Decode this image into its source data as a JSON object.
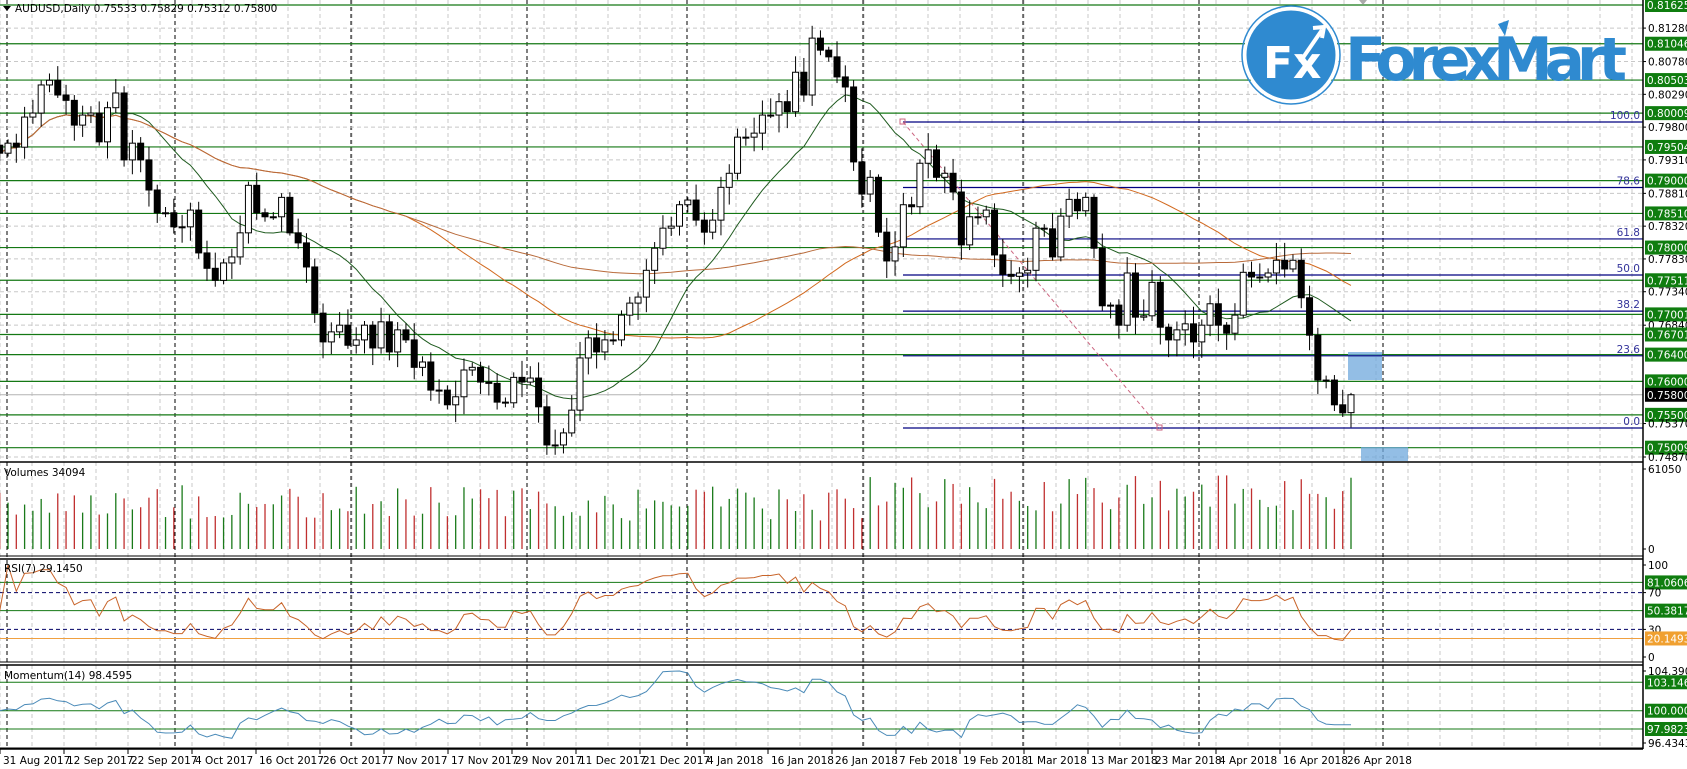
{
  "chart_data": {
    "type": "candlestick",
    "symbol_header": "AUDUSD,Daily  0.75533 0.75829 0.75312 0.75800",
    "last_bar": {
      "open": 0.75533,
      "high": 0.75829,
      "low": 0.75312,
      "close": 0.758
    },
    "closes": [
      0.7941,
      0.7956,
      0.795,
      0.7995,
      0.8001,
      0.8043,
      0.805,
      0.8028,
      0.802,
      0.7983,
      0.7998,
      0.8001,
      0.7958,
      0.8009,
      0.8031,
      0.7931,
      0.7956,
      0.7931,
      0.7886,
      0.7852,
      0.7852,
      0.7831,
      0.7831,
      0.7856,
      0.7792,
      0.7769,
      0.7751,
      0.7777,
      0.7786,
      0.7822,
      0.7893,
      0.7852,
      0.7846,
      0.7846,
      0.7875,
      0.7822,
      0.7807,
      0.7771,
      0.7702,
      0.7659,
      0.7674,
      0.7684,
      0.7654,
      0.7662,
      0.7684,
      0.765,
      0.7689,
      0.7644,
      0.7677,
      0.7662,
      0.7621,
      0.7629,
      0.7587,
      0.7587,
      0.7565,
      0.7577,
      0.7617,
      0.7621,
      0.7599,
      0.7597,
      0.7569,
      0.7568,
      0.7606,
      0.7599,
      0.7605,
      0.7562,
      0.7505,
      0.7505,
      0.7523,
      0.7557,
      0.7635,
      0.7665,
      0.7644,
      0.7662,
      0.7662,
      0.7699,
      0.7717,
      0.7726,
      0.7766,
      0.7799,
      0.7829,
      0.7832,
      0.7864,
      0.7871,
      0.7841,
      0.7823,
      0.7841,
      0.789,
      0.7911,
      0.7965,
      0.7965,
      0.7971,
      0.7998,
      0.7998,
      0.8018,
      0.8003,
      0.8062,
      0.8028,
      0.8113,
      0.8095,
      0.8085,
      0.8055,
      0.804,
      0.7928,
      0.788,
      0.7905,
      0.7823,
      0.778,
      0.7801,
      0.7864,
      0.7861,
      0.7926,
      0.7946,
      0.7905,
      0.7911,
      0.7883,
      0.7804,
      0.7846,
      0.7846,
      0.7856,
      0.7789,
      0.776,
      0.7757,
      0.7762,
      0.7766,
      0.7829,
      0.7828,
      0.7786,
      0.7847,
      0.7872,
      0.7855,
      0.7875,
      0.7799,
      0.7713,
      0.7714,
      0.7684,
      0.7762,
      0.7696,
      0.7698,
      0.7748,
      0.7681,
      0.7662,
      0.7677,
      0.7686,
      0.7659,
      0.7684,
      0.7716,
      0.7684,
      0.7672,
      0.7699,
      0.7763,
      0.7756,
      0.7756,
      0.7762,
      0.7781,
      0.7768,
      0.7781,
      0.7725,
      0.7669,
      0.7602,
      0.7602,
      0.7565,
      0.7553,
      0.758
    ],
    "ylim": [
      0.7487,
      0.81625
    ],
    "price_axis_labels": [
      {
        "text": "0.81625",
        "value": 0.81625,
        "style": "level"
      },
      {
        "text": "0.81280",
        "value": 0.8128,
        "style": "tick"
      },
      {
        "text": "0.81046",
        "value": 0.81046,
        "style": "level"
      },
      {
        "text": "0.80780",
        "value": 0.8078,
        "style": "tick"
      },
      {
        "text": "0.80503",
        "value": 0.80503,
        "style": "level"
      },
      {
        "text": "0.80290",
        "value": 0.8029,
        "style": "tick"
      },
      {
        "text": "0.80009",
        "value": 0.80009,
        "style": "level"
      },
      {
        "text": "0.79800",
        "value": 0.798,
        "style": "tick"
      },
      {
        "text": "0.79504",
        "value": 0.79504,
        "style": "level"
      },
      {
        "text": "0.79310",
        "value": 0.7931,
        "style": "tick"
      },
      {
        "text": "0.79000",
        "value": 0.79,
        "style": "level"
      },
      {
        "text": "0.78810",
        "value": 0.7881,
        "style": "tick"
      },
      {
        "text": "0.78510",
        "value": 0.7851,
        "style": "level"
      },
      {
        "text": "0.78320",
        "value": 0.7832,
        "style": "tick"
      },
      {
        "text": "0.78000",
        "value": 0.78,
        "style": "level"
      },
      {
        "text": "0.77830",
        "value": 0.7783,
        "style": "tick"
      },
      {
        "text": "0.77511",
        "value": 0.77511,
        "style": "level"
      },
      {
        "text": "0.77340",
        "value": 0.7734,
        "style": "tick"
      },
      {
        "text": "0.77001",
        "value": 0.77001,
        "style": "level"
      },
      {
        "text": "0.76840",
        "value": 0.7684,
        "style": "tick"
      },
      {
        "text": "0.76701",
        "value": 0.76701,
        "style": "level"
      },
      {
        "text": "0.76400",
        "value": 0.764,
        "style": "level"
      },
      {
        "text": "0.76000",
        "value": 0.76,
        "style": "level"
      },
      {
        "text": "0.75800",
        "value": 0.758,
        "style": "current"
      },
      {
        "text": "0.75500",
        "value": 0.755,
        "style": "level"
      },
      {
        "text": "0.75370",
        "value": 0.7537,
        "style": "tick"
      },
      {
        "text": "0.75009",
        "value": 0.75009,
        "style": "level"
      },
      {
        "text": "0.74870",
        "value": 0.7487,
        "style": "tick"
      }
    ],
    "fibonacci": {
      "high": 0.79876,
      "low": 0.75303,
      "levels": [
        {
          "text": "100.0",
          "ratio": 1.0
        },
        {
          "text": "78.6",
          "ratio": 0.786
        },
        {
          "text": "61.8",
          "ratio": 0.618
        },
        {
          "text": "50.0",
          "ratio": 0.5
        },
        {
          "text": "38.2",
          "ratio": 0.382
        },
        {
          "text": "23.6",
          "ratio": 0.236
        },
        {
          "text": "0.0",
          "ratio": 0.0
        }
      ]
    },
    "x_labels": [
      "31 Aug 2017",
      "12 Sep 2017",
      "22 Sep 2017",
      "4 Oct 2017",
      "16 Oct 2017",
      "26 Oct 2017",
      "7 Nov 2017",
      "17 Nov 2017",
      "29 Nov 2017",
      "11 Dec 2017",
      "21 Dec 2017",
      "4 Jan 2018",
      "16 Jan 2018",
      "26 Jan 2018",
      "7 Feb 2018",
      "19 Feb 2018",
      "1 Mar 2018",
      "13 Mar 2018",
      "23 Mar 2018",
      "4 Apr 2018",
      "16 Apr 2018",
      "26 Apr 2018"
    ],
    "volume": {
      "label": "Volumes 34094",
      "max_label": "61050",
      "min_label": "0",
      "max": 61050
    },
    "rsi": {
      "label": "RSI(7) 29.1450",
      "value": 29.145,
      "axis": [
        {
          "text": "100",
          "value": 100,
          "style": "tick"
        },
        {
          "text": "81.0606",
          "value": 81.0606,
          "style": "level"
        },
        {
          "text": "70",
          "value": 70,
          "style": "tick"
        },
        {
          "text": "50.3817",
          "value": 50.3817,
          "style": "level"
        },
        {
          "text": "30",
          "value": 30,
          "style": "tick"
        },
        {
          "text": "20.1493",
          "value": 20.1493,
          "style": "orange"
        },
        {
          "text": "0",
          "value": 0,
          "style": "tick"
        }
      ]
    },
    "momentum": {
      "label": "Momentum(14) 98.4595",
      "value": 98.4595,
      "range": [
        96.4343,
        104.3906
      ],
      "axis": [
        {
          "text": "104.3906",
          "value": 104.3906,
          "style": "tick"
        },
        {
          "text": "103.1460",
          "value": 103.146,
          "style": "level"
        },
        {
          "text": "100.0000",
          "value": 100.0,
          "style": "level"
        },
        {
          "text": "97.9823",
          "value": 97.9823,
          "style": "level"
        },
        {
          "text": "96.4343",
          "value": 96.4343,
          "style": "tick"
        }
      ]
    }
  },
  "logo": {
    "badge": "Fx",
    "text": "ForexMart"
  },
  "colors": {
    "level": "#147814",
    "level_label": "#0f7d0f",
    "fib": "#000080",
    "ma_fast": "#1e5a1e",
    "ma_mid": "#d2691e",
    "ma_slow": "#b86a3a",
    "rsi": "#c8642a",
    "momentum": "#4a8ab8",
    "vol_up": "#1a7a1a",
    "vol_down": "#c03030",
    "brand": "#2f8ad0"
  }
}
